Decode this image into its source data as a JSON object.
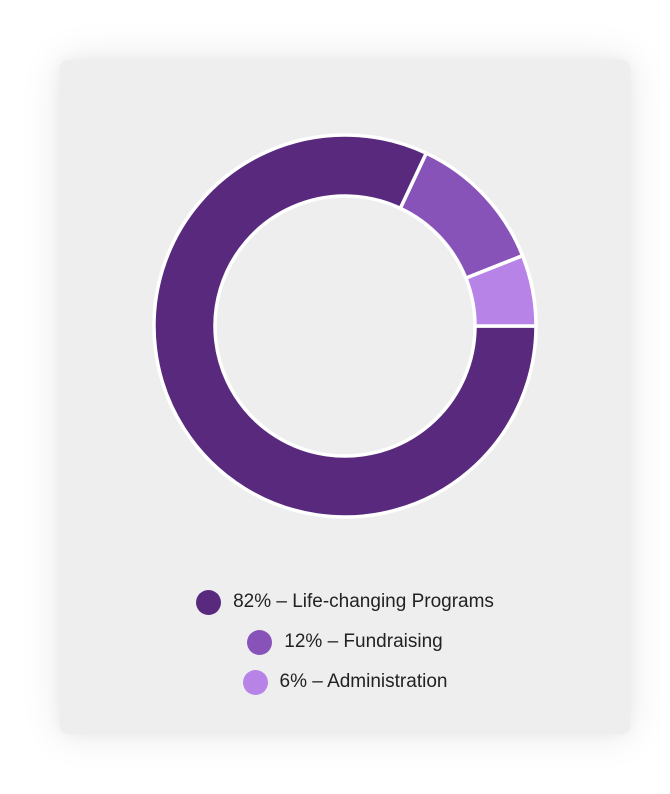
{
  "chart_data": {
    "type": "pie",
    "variant": "donut",
    "categories": [
      "Life-changing Programs",
      "Fundraising",
      "Administration"
    ],
    "values": [
      82,
      12,
      6
    ],
    "unit": "%",
    "colors": [
      "#58297d",
      "#8753b9",
      "#b783e6"
    ],
    "legend_position": "bottom",
    "legend": [
      {
        "text": "82% – Life-changing Programs",
        "color": "#58297d"
      },
      {
        "text": "12% – Fundraising",
        "color": "#8753b9"
      },
      {
        "text": "6% – Administration",
        "color": "#b783e6"
      }
    ]
  }
}
